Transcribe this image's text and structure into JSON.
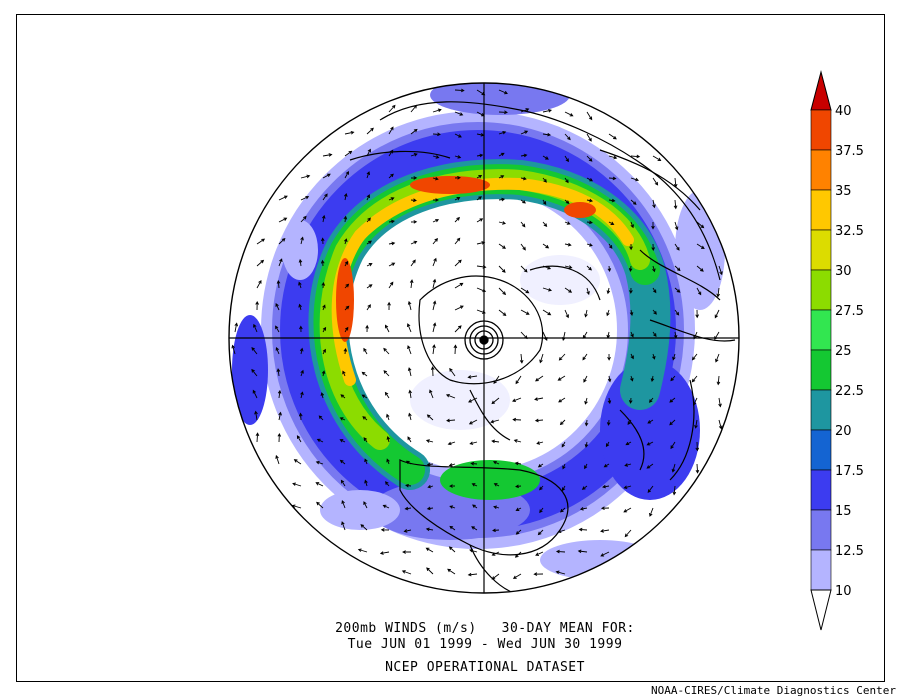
{
  "caption": {
    "line1": "200mb WINDS (m/s)   30-DAY MEAN FOR:",
    "line2": "Tue JUN 01 1999 - Wed JUN 30 1999",
    "line3": "NCEP OPERATIONAL DATASET"
  },
  "credit": "NOAA-CIRES/Climate Diagnostics Center",
  "colorbar": {
    "labels": [
      "10",
      "12.5",
      "15",
      "17.5",
      "20",
      "22.5",
      "25",
      "27.5",
      "30",
      "32.5",
      "35",
      "37.5",
      "40"
    ],
    "colors": [
      "#f0f0ff",
      "#b4b4ff",
      "#7878f0",
      "#3c3cf0",
      "#1464d2",
      "#1e96a0",
      "#14c832",
      "#32e650",
      "#8cdc00",
      "#dcdc00",
      "#ffc800",
      "#ff8200",
      "#f04600",
      "#c80000"
    ]
  },
  "chart_data": {
    "type": "heatmap",
    "projection": "north polar stereographic",
    "variable": "200mb wind speed (m/s) with wind vectors",
    "levels": [
      10,
      12.5,
      15,
      17.5,
      20,
      22.5,
      25,
      27.5,
      30,
      32.5,
      35,
      37.5,
      40
    ]
  }
}
